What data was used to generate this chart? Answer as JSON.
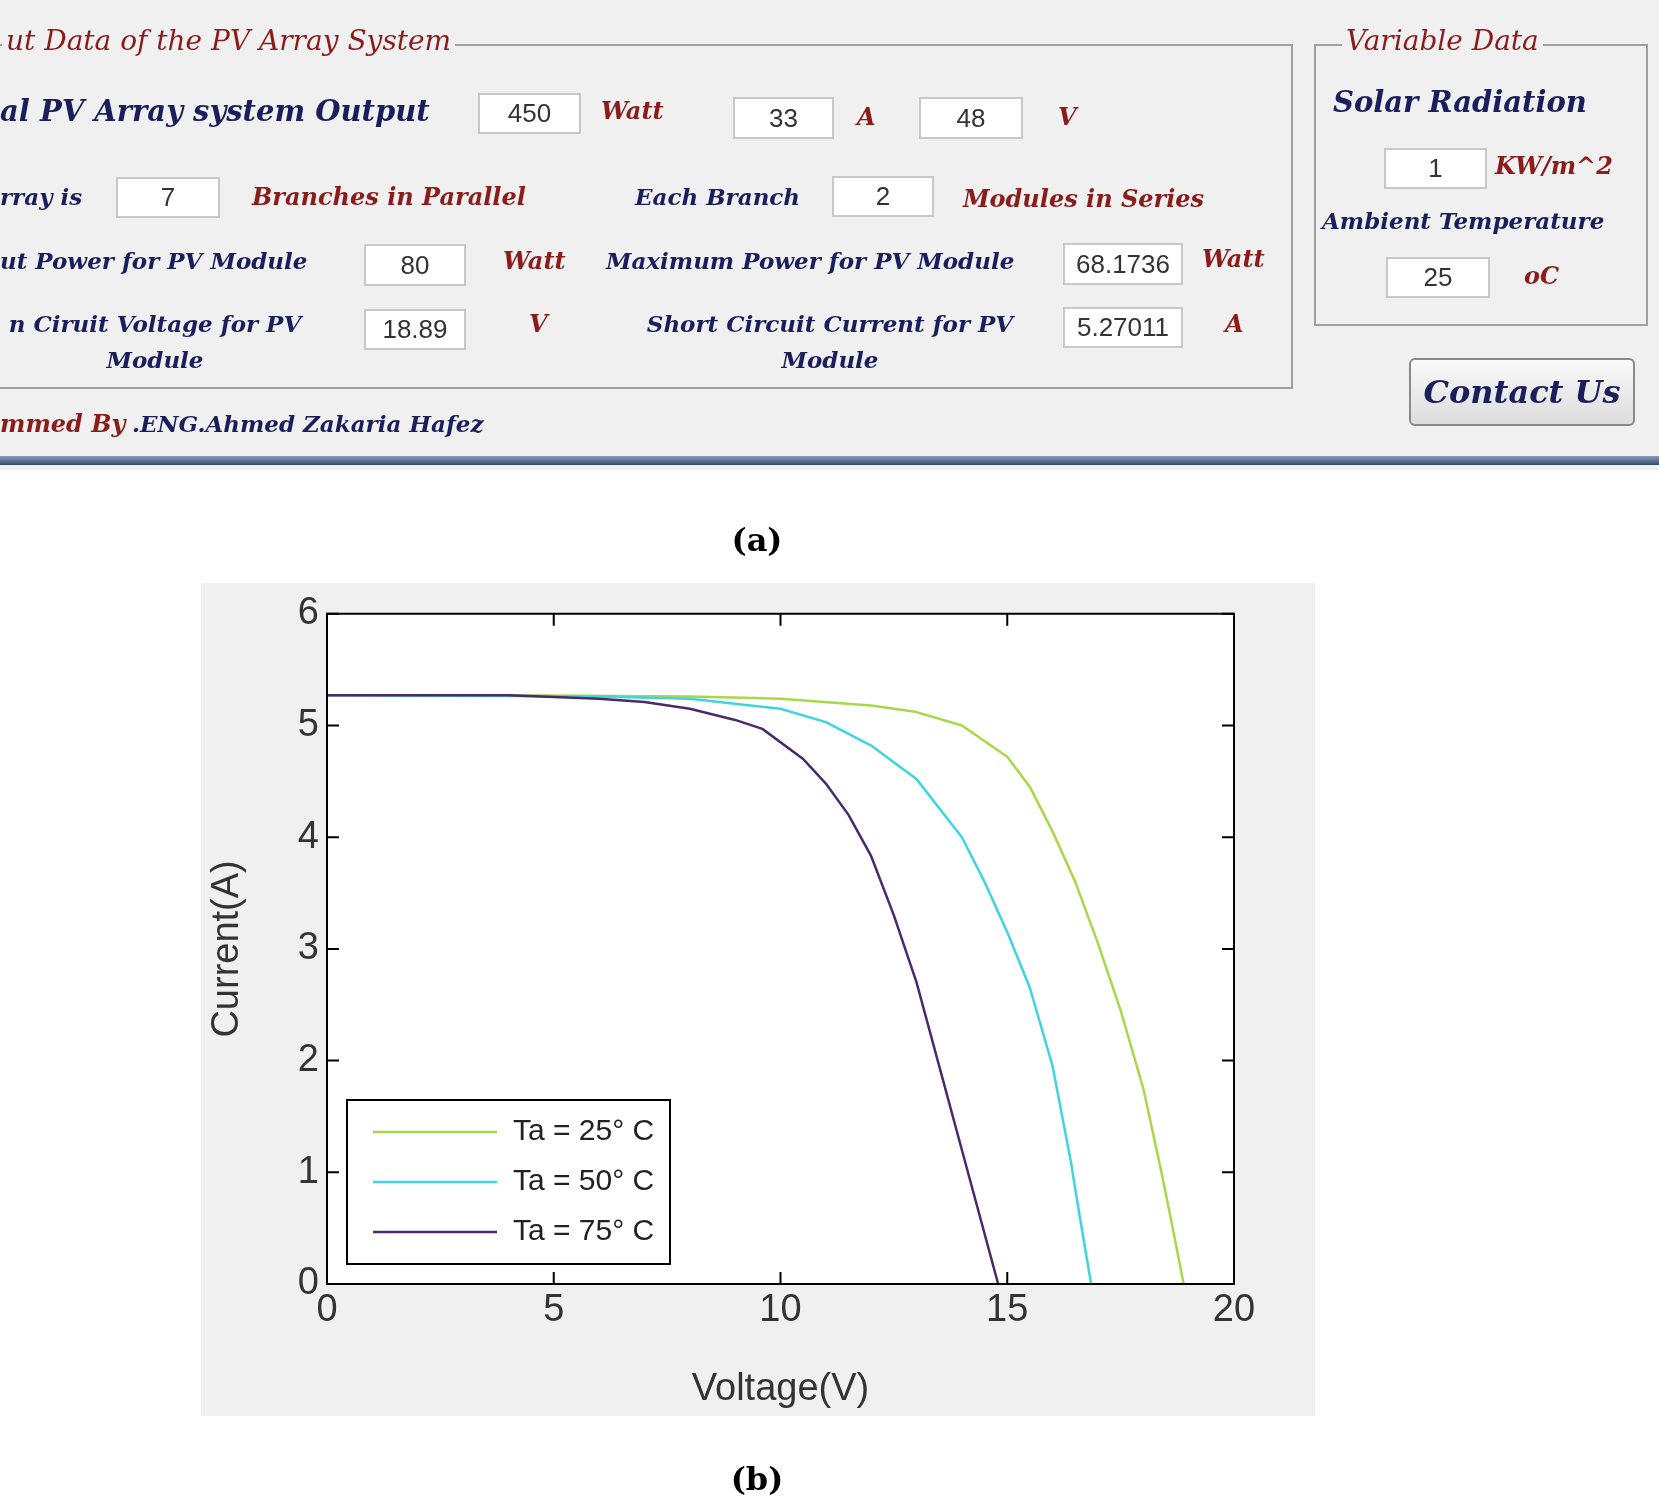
{
  "chart_data": [
    {
      "type": "other",
      "annotations": [
        "ut Data of the PV Array System",
        "al PV Array system Output",
        "450",
        "Watt",
        "33",
        "A",
        "48",
        "V",
        "rray is",
        "7",
        "Branches in Parallel",
        "Each Branch",
        "2",
        "Modules in Series",
        "ut Power for PV Module",
        "80",
        "Watt",
        "Maximum Power for PV Module",
        "68.1736",
        "Watt",
        "n Ciruit Voltage for PV Module",
        "18.89",
        "V",
        "Short Circuit Current for PV Module",
        "5.27011",
        "A",
        "Variable Data",
        "Solar Radiation",
        "1",
        "KW/m^2",
        "Ambient Temperature",
        "25",
        "oC",
        "Contact Us",
        "mmed By",
        ".ENG.Ahmed Zakaria Hafez",
        "(a)"
      ]
    },
    {
      "type": "line",
      "xlabel": "Voltage(V)",
      "ylabel": "Current(A)",
      "xlim": [
        0,
        20
      ],
      "xticks": [
        0,
        5,
        10,
        15,
        20
      ],
      "ylim": [
        0,
        6
      ],
      "yticks": [
        0,
        1,
        2,
        3,
        4,
        5,
        6
      ],
      "legend": "bottom left",
      "annotations": [
        "(b)"
      ],
      "series": [
        {
          "name": "Ta = 25° C",
          "color": "#a8d84a",
          "x": [
            0,
            4,
            8,
            10,
            12,
            13,
            14,
            15,
            15.5,
            16,
            16.5,
            17,
            17.5,
            18,
            18.4,
            18.6,
            18.89
          ],
          "values": [
            5.27,
            5.27,
            5.26,
            5.24,
            5.18,
            5.12,
            5.0,
            4.72,
            4.45,
            4.05,
            3.6,
            3.05,
            2.45,
            1.75,
            1.0,
            0.6,
            0
          ]
        },
        {
          "name": "Ta = 50° C",
          "color": "#40d4e0",
          "x": [
            0,
            6,
            8,
            10,
            11,
            12,
            13,
            14,
            14.5,
            15,
            15.5,
            16,
            16.4,
            16.6,
            16.85
          ],
          "values": [
            5.27,
            5.26,
            5.24,
            5.15,
            5.03,
            4.82,
            4.52,
            4.0,
            3.6,
            3.15,
            2.65,
            1.95,
            1.1,
            0.6,
            0
          ]
        },
        {
          "name": "Ta = 75° C",
          "color": "#4a2a6a",
          "x": [
            0,
            4,
            6,
            7,
            8,
            9,
            9.6,
            10.5,
            11,
            11.5,
            12,
            12.5,
            13,
            13.5,
            14,
            14.4,
            14.8
          ],
          "values": [
            5.27,
            5.27,
            5.24,
            5.21,
            5.15,
            5.05,
            4.97,
            4.7,
            4.48,
            4.2,
            3.83,
            3.3,
            2.7,
            1.95,
            1.2,
            0.6,
            0
          ]
        }
      ]
    }
  ]
}
